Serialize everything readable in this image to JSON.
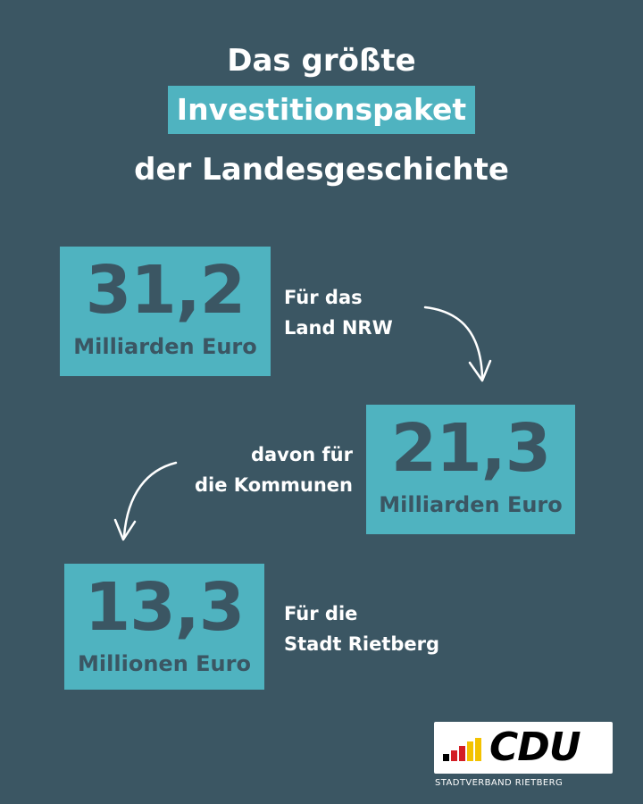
{
  "headline": {
    "line1": "Das größte",
    "line2": "Investitionspaket",
    "line3": "der Landesgeschichte"
  },
  "stats": [
    {
      "number": "31,2",
      "unit": "Milliarden Euro",
      "label_line1": "Für das",
      "label_line2": "Land NRW"
    },
    {
      "number": "21,3",
      "unit": "Milliarden Euro",
      "label_line1": "davon für",
      "label_line2": "die Kommunen"
    },
    {
      "number": "13,3",
      "unit": "Millionen Euro",
      "label_line1": "Für die",
      "label_line2": "Stadt Rietberg"
    }
  ],
  "logo": {
    "text": "CDU",
    "subtitle": "STADTVERBAND RIETBERG"
  },
  "colors": {
    "background": "#3b5663",
    "accent": "#4fb3c0",
    "text": "#ffffff"
  }
}
